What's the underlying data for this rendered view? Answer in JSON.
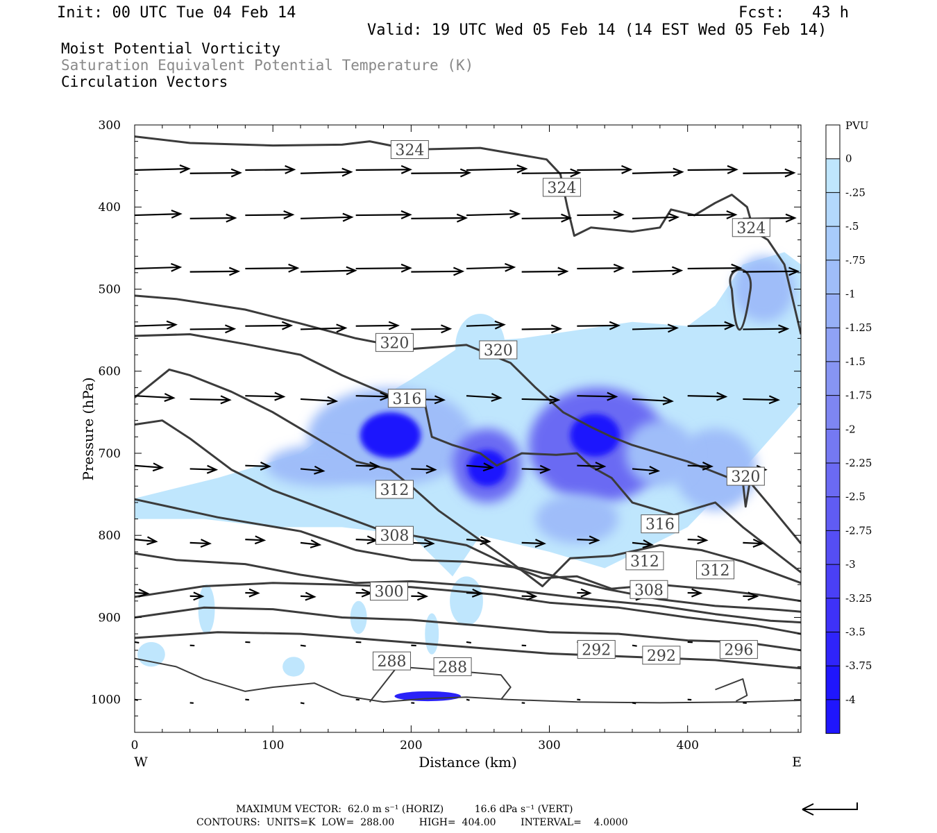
{
  "header": {
    "init": "Init: 00 UTC Tue 04 Feb 14",
    "fcst": "Fcst:   43 h",
    "valid": "Valid: 19 UTC Wed 05 Feb 14 (14 EST Wed 05 Feb 14)",
    "title1": "Moist Potential Vorticity",
    "title2": "Saturation Equivalent Potential Temperature (K)",
    "title3": "Circulation Vectors"
  },
  "chart_data": {
    "type": "cross-section",
    "xlabel": "Distance (km)",
    "ylabel": "Pressure (hPa)",
    "xlim": [
      0,
      482
    ],
    "ylim": [
      1040,
      300
    ],
    "x_ticks": [
      "0",
      "100",
      "200",
      "300",
      "400"
    ],
    "y_ticks": [
      "300",
      "400",
      "500",
      "600",
      "700",
      "800",
      "900",
      "1000"
    ],
    "x_left": "W",
    "x_right": "E",
    "colorbar": {
      "unit": "PVU",
      "labels": [
        "0",
        "-.25",
        "-.5",
        "-.75",
        "-1",
        "-1.25",
        "-1.5",
        "-1.75",
        "-2",
        "-2.25",
        "-2.5",
        "-2.75",
        "-3",
        "-3.25",
        "-3.5",
        "-3.75",
        "-4"
      ],
      "colors": [
        "#ffffff",
        "#bfe6fd",
        "#b3d8fc",
        "#a8cbfb",
        "#9fbdf9",
        "#97b0f7",
        "#8fa2f5",
        "#8795f3",
        "#7e86f2",
        "#7579f2",
        "#6b6af3",
        "#605cf3",
        "#554ef4",
        "#4a40f6",
        "#3e32f8",
        "#2f24fa",
        "#1f16fd"
      ]
    },
    "contour_labels": [
      {
        "text": "324",
        "x": 199,
        "p": 330
      },
      {
        "text": "324",
        "x": 309,
        "p": 376
      },
      {
        "text": "324",
        "x": 446,
        "p": 425
      },
      {
        "text": "320",
        "x": 188,
        "p": 565
      },
      {
        "text": "320",
        "x": 263,
        "p": 574
      },
      {
        "text": "320",
        "x": 442,
        "p": 728
      },
      {
        "text": "316",
        "x": 197,
        "p": 633
      },
      {
        "text": "316",
        "x": 380,
        "p": 786
      },
      {
        "text": "312",
        "x": 188,
        "p": 744
      },
      {
        "text": "312",
        "x": 369,
        "p": 831
      },
      {
        "text": "312",
        "x": 420,
        "p": 842
      },
      {
        "text": "308",
        "x": 188,
        "p": 800
      },
      {
        "text": "308",
        "x": 372,
        "p": 866
      },
      {
        "text": "300",
        "x": 184,
        "p": 868
      },
      {
        "text": "296",
        "x": 437,
        "p": 939
      },
      {
        "text": "292",
        "x": 334,
        "p": 939
      },
      {
        "text": "292",
        "x": 381,
        "p": 946
      },
      {
        "text": "288",
        "x": 186,
        "p": 953
      },
      {
        "text": "288",
        "x": 230,
        "p": 960
      }
    ],
    "vector_rows_hpa": [
      355,
      410,
      475,
      545,
      630,
      715,
      805,
      870,
      930,
      1000
    ]
  },
  "footer": {
    "line1": "MAXIMUM VECTOR:  62.0 m s⁻¹ (HORIZ)          16.6 dPa s⁻¹ (VERT)",
    "line2": "CONTOURS:  UNITS=K  LOW=  288.00        HIGH=  404.00        INTERVAL=    4.0000"
  },
  "colors": {
    "contour": "#3b3b3b",
    "vector": "#000000"
  }
}
